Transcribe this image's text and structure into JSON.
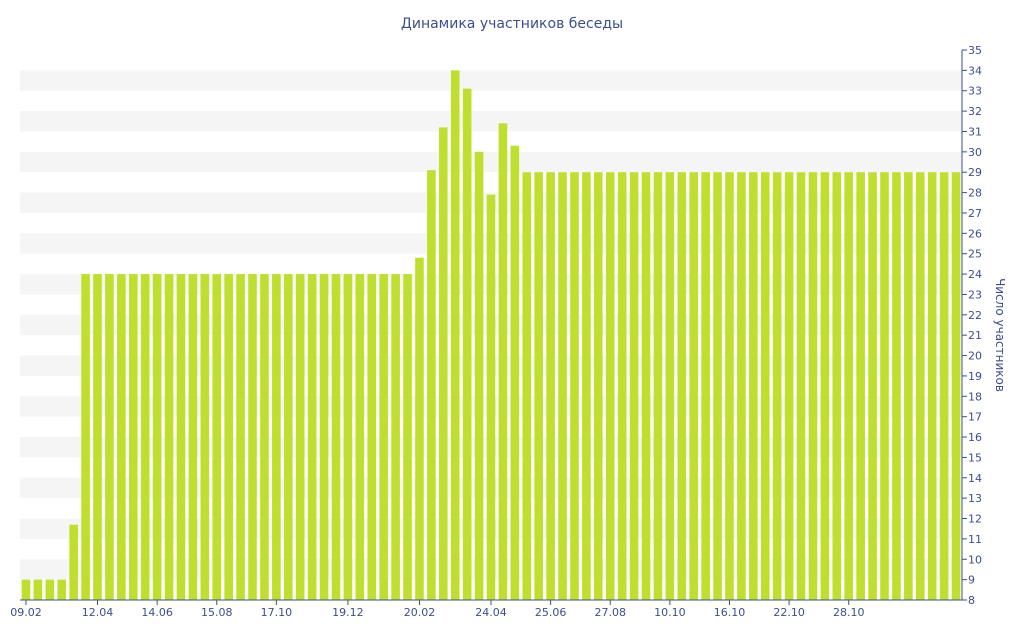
{
  "chart_data": {
    "type": "bar",
    "title": "Динамика участников беседы",
    "xlabel": "",
    "ylabel": "Число участников",
    "ylim": [
      8,
      35
    ],
    "grid": "horizontal bands",
    "legend": "none",
    "y_ticks": [
      "8",
      "9",
      "10",
      "11",
      "12",
      "13",
      "14",
      "15",
      "16",
      "17",
      "18",
      "19",
      "20",
      "21",
      "22",
      "23",
      "24",
      "25",
      "26",
      "27",
      "28",
      "29",
      "30",
      "31",
      "32",
      "33",
      "34",
      "35"
    ],
    "x_tick_labels": [
      {
        "index": 0,
        "label": "09.02"
      },
      {
        "index": 6,
        "label": "12.04"
      },
      {
        "index": 11,
        "label": "14.06"
      },
      {
        "index": 16,
        "label": "15.08"
      },
      {
        "index": 21,
        "label": "17.10"
      },
      {
        "index": 27,
        "label": "19.12"
      },
      {
        "index": 33,
        "label": "20.02"
      },
      {
        "index": 39,
        "label": "24.04"
      },
      {
        "index": 44,
        "label": "25.06"
      },
      {
        "index": 49,
        "label": "27.08"
      },
      {
        "index": 54,
        "label": "10.10"
      },
      {
        "index": 59,
        "label": "16.10"
      },
      {
        "index": 64,
        "label": "22.10"
      },
      {
        "index": 69,
        "label": "28.10"
      }
    ],
    "values": [
      9,
      9,
      9,
      9,
      11.7,
      24,
      24,
      24,
      24,
      24,
      24,
      24,
      24,
      24,
      24,
      24,
      24,
      24,
      24,
      24,
      24,
      24,
      24,
      24,
      24,
      24,
      24,
      24,
      24,
      24,
      24,
      24,
      24,
      24.8,
      29.1,
      31.2,
      34,
      33.1,
      30,
      27.9,
      31.4,
      30.3,
      29,
      29,
      29,
      29,
      29,
      29,
      29,
      29,
      29,
      29,
      29,
      29,
      29,
      29,
      29,
      29,
      29,
      29,
      29,
      29,
      29,
      29,
      29,
      29,
      29,
      29,
      29,
      29,
      29,
      29,
      29,
      29,
      29,
      29,
      29,
      29,
      29
    ]
  },
  "colors": {
    "bar": "#bfdf2f",
    "band": "#f5f5f5",
    "axis_text": "#3a4f8f",
    "axis_line": "#3a4f8f"
  }
}
